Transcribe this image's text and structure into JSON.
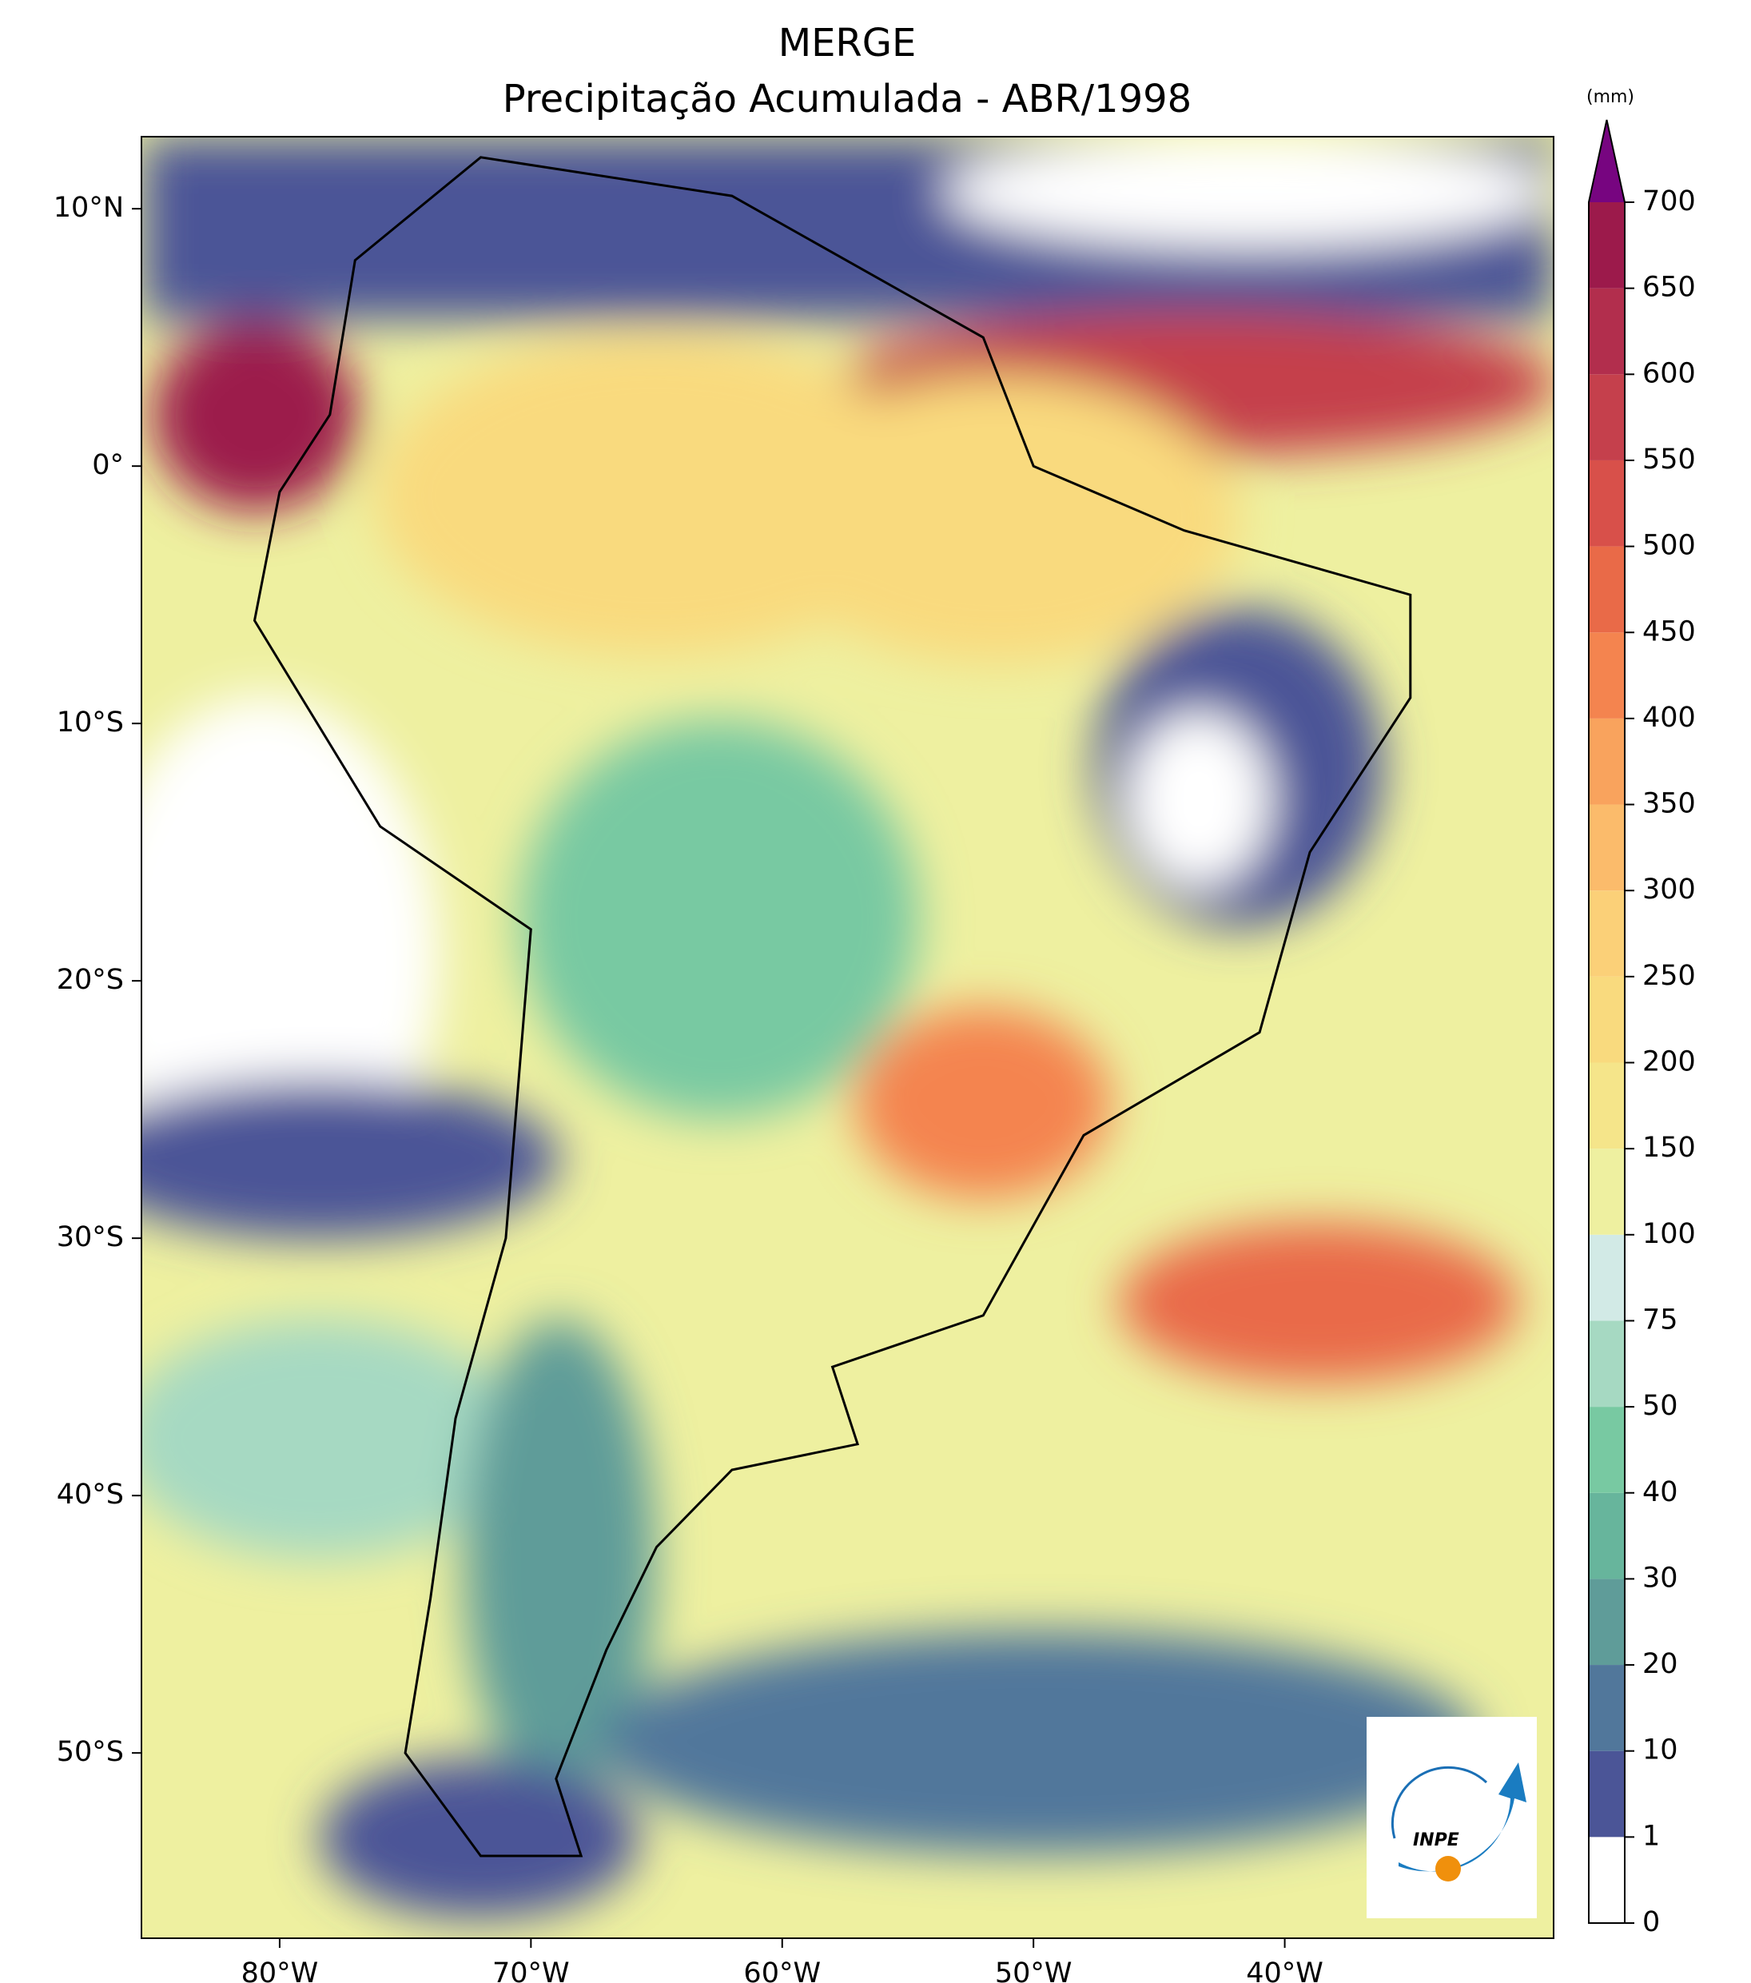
{
  "map": {
    "title": "MERGE",
    "subtitle": "Precipitação Acumulada - ABR/1998",
    "xlim": [
      -85.5,
      -29.3
    ],
    "ylim": [
      -57.2,
      12.8
    ],
    "xticks": [
      {
        "value": -80,
        "label": "80°W"
      },
      {
        "value": -70,
        "label": "70°W"
      },
      {
        "value": -60,
        "label": "60°W"
      },
      {
        "value": -50,
        "label": "50°W"
      },
      {
        "value": -40,
        "label": "40°W"
      }
    ],
    "yticks": [
      {
        "value": 10,
        "label": "10°N"
      },
      {
        "value": 0,
        "label": "0°"
      },
      {
        "value": -10,
        "label": "10°S"
      },
      {
        "value": -20,
        "label": "20°S"
      },
      {
        "value": -30,
        "label": "30°S"
      },
      {
        "value": -40,
        "label": "40°S"
      },
      {
        "value": -50,
        "label": "50°S"
      }
    ],
    "colorbar": {
      "unit": "(mm)",
      "levels": [
        0,
        1,
        10,
        20,
        30,
        40,
        50,
        75,
        100,
        150,
        200,
        250,
        300,
        350,
        400,
        450,
        500,
        550,
        600,
        650,
        700
      ],
      "colors": [
        "#ffffff",
        "#4b5597",
        "#51779b",
        "#5f9c99",
        "#67b59c",
        "#78c9a2",
        "#a6d9c2",
        "#d2eae6",
        "#eef0a0",
        "#f5e58a",
        "#f9da7e",
        "#fbd078",
        "#fbbb6b",
        "#f9a35d",
        "#f4844f",
        "#e96a48",
        "#d8504a",
        "#c5404c",
        "#b22e4d",
        "#9c1a4b"
      ],
      "extend_color": "#770580"
    },
    "logo": "INPE"
  }
}
